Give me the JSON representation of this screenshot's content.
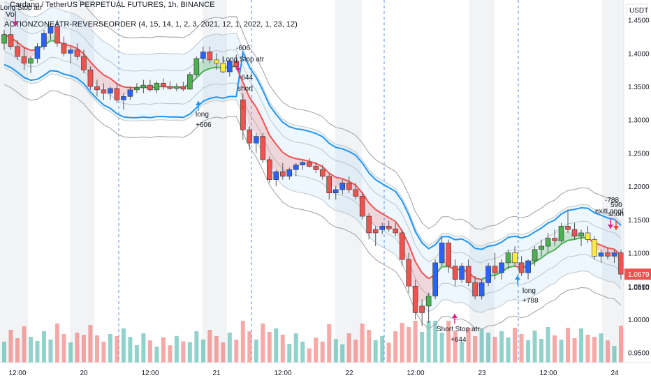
{
  "header": {
    "symbol_line": "Cardano / TetherUS PERPETUAL FUTURES, 1h, BINANCE",
    "vol_label": "Vol",
    "indicator_line": "ACTIONZONEATR-REVERSEORDER (4, 15, 14, 1, 2, 3, 2021, 12, 1, 2022, 1, 23, 12)"
  },
  "axis": {
    "currency": "USDT",
    "y_ticks": [
      "1.4500",
      "1.4000",
      "1.3500",
      "1.3000",
      "1.2500",
      "1.2000",
      "1.1500",
      "1.1000",
      "1.0500",
      "1.0000",
      "0.9500"
    ],
    "current_price": "1.0679",
    "secondary_price": "1.0610",
    "x_ticks": [
      "12:00",
      "20",
      "12:00",
      "21",
      "12:00",
      "22",
      "12:00",
      "23",
      "12:00",
      "24"
    ]
  },
  "annotations": [
    {
      "text": "Long Stop atr"
    },
    {
      "text": "-606"
    },
    {
      "text": "Long Stop atr"
    },
    {
      "text": "-644"
    },
    {
      "text": "short"
    },
    {
      "text": "long"
    },
    {
      "text": "+606"
    },
    {
      "text": "Short Stop atr"
    },
    {
      "text": "+644"
    },
    {
      "text": "long"
    },
    {
      "text": "+788"
    },
    {
      "text": "-788"
    },
    {
      "text": "exitLong(15"
    },
    {
      "text": "590"
    },
    {
      "text": "short"
    }
  ],
  "colors": {
    "bull": "#26a69a",
    "bear": "#ef5350",
    "blue_candle": "#2962ff",
    "green_candle": "#4caf50",
    "yellow_candle": "#ffeb3b",
    "ema_red": "#ef5350",
    "ema_green": "#4caf50",
    "atr_line": "#2196f3",
    "price_badge": "#ef5350",
    "secondary_badge": "#ffffff"
  },
  "chart_data": {
    "type": "candlestick",
    "y_range": [
      0.935,
      1.48
    ],
    "x_ticks": [
      "12:00",
      "20",
      "12:00",
      "21",
      "12:00",
      "22",
      "12:00",
      "23",
      "12:00",
      "24"
    ],
    "candles": [
      {
        "o": 1.415,
        "h": 1.435,
        "l": 1.405,
        "c": 1.428,
        "color": "green"
      },
      {
        "o": 1.428,
        "h": 1.44,
        "l": 1.405,
        "c": 1.41,
        "color": "red"
      },
      {
        "o": 1.41,
        "h": 1.42,
        "l": 1.39,
        "c": 1.395,
        "color": "red"
      },
      {
        "o": 1.395,
        "h": 1.41,
        "l": 1.375,
        "c": 1.385,
        "color": "red"
      },
      {
        "o": 1.385,
        "h": 1.395,
        "l": 1.37,
        "c": 1.392,
        "color": "green"
      },
      {
        "o": 1.392,
        "h": 1.415,
        "l": 1.385,
        "c": 1.41,
        "color": "blue"
      },
      {
        "o": 1.41,
        "h": 1.435,
        "l": 1.405,
        "c": 1.43,
        "color": "blue"
      },
      {
        "o": 1.43,
        "h": 1.445,
        "l": 1.42,
        "c": 1.44,
        "color": "blue"
      },
      {
        "o": 1.44,
        "h": 1.45,
        "l": 1.41,
        "c": 1.415,
        "color": "red"
      },
      {
        "o": 1.415,
        "h": 1.425,
        "l": 1.395,
        "c": 1.4,
        "color": "red"
      },
      {
        "o": 1.4,
        "h": 1.41,
        "l": 1.385,
        "c": 1.405,
        "color": "blue"
      },
      {
        "o": 1.405,
        "h": 1.415,
        "l": 1.39,
        "c": 1.395,
        "color": "red"
      },
      {
        "o": 1.395,
        "h": 1.405,
        "l": 1.37,
        "c": 1.375,
        "color": "red"
      },
      {
        "o": 1.375,
        "h": 1.38,
        "l": 1.345,
        "c": 1.35,
        "color": "red"
      },
      {
        "o": 1.35,
        "h": 1.36,
        "l": 1.335,
        "c": 1.345,
        "color": "red"
      },
      {
        "o": 1.345,
        "h": 1.355,
        "l": 1.33,
        "c": 1.34,
        "color": "red"
      },
      {
        "o": 1.34,
        "h": 1.35,
        "l": 1.33,
        "c": 1.347,
        "color": "blue"
      },
      {
        "o": 1.347,
        "h": 1.355,
        "l": 1.325,
        "c": 1.33,
        "color": "red"
      },
      {
        "o": 1.33,
        "h": 1.34,
        "l": 1.315,
        "c": 1.335,
        "color": "blue"
      },
      {
        "o": 1.335,
        "h": 1.35,
        "l": 1.33,
        "c": 1.345,
        "color": "blue"
      },
      {
        "o": 1.345,
        "h": 1.355,
        "l": 1.34,
        "c": 1.348,
        "color": "green"
      },
      {
        "o": 1.348,
        "h": 1.36,
        "l": 1.34,
        "c": 1.352,
        "color": "green"
      },
      {
        "o": 1.352,
        "h": 1.36,
        "l": 1.342,
        "c": 1.345,
        "color": "red"
      },
      {
        "o": 1.345,
        "h": 1.358,
        "l": 1.34,
        "c": 1.355,
        "color": "green"
      },
      {
        "o": 1.355,
        "h": 1.362,
        "l": 1.345,
        "c": 1.35,
        "color": "red"
      },
      {
        "o": 1.35,
        "h": 1.358,
        "l": 1.345,
        "c": 1.347,
        "color": "red"
      },
      {
        "o": 1.347,
        "h": 1.355,
        "l": 1.343,
        "c": 1.35,
        "color": "green"
      },
      {
        "o": 1.35,
        "h": 1.357,
        "l": 1.343,
        "c": 1.346,
        "color": "red"
      },
      {
        "o": 1.346,
        "h": 1.372,
        "l": 1.345,
        "c": 1.368,
        "color": "green"
      },
      {
        "o": 1.368,
        "h": 1.395,
        "l": 1.365,
        "c": 1.392,
        "color": "green"
      },
      {
        "o": 1.392,
        "h": 1.41,
        "l": 1.385,
        "c": 1.402,
        "color": "blue"
      },
      {
        "o": 1.402,
        "h": 1.41,
        "l": 1.385,
        "c": 1.39,
        "color": "red"
      },
      {
        "o": 1.39,
        "h": 1.4,
        "l": 1.375,
        "c": 1.385,
        "color": "yellow"
      },
      {
        "o": 1.385,
        "h": 1.395,
        "l": 1.37,
        "c": 1.372,
        "color": "yellow"
      },
      {
        "o": 1.372,
        "h": 1.39,
        "l": 1.365,
        "c": 1.388,
        "color": "blue"
      },
      {
        "o": 1.388,
        "h": 1.398,
        "l": 1.375,
        "c": 1.38,
        "color": "red"
      },
      {
        "o": 1.33,
        "h": 1.34,
        "l": 1.27,
        "c": 1.285,
        "color": "red"
      },
      {
        "o": 1.285,
        "h": 1.29,
        "l": 1.255,
        "c": 1.265,
        "color": "red"
      },
      {
        "o": 1.265,
        "h": 1.28,
        "l": 1.25,
        "c": 1.275,
        "color": "blue"
      },
      {
        "o": 1.275,
        "h": 1.28,
        "l": 1.235,
        "c": 1.24,
        "color": "red"
      },
      {
        "o": 1.24,
        "h": 1.245,
        "l": 1.205,
        "c": 1.21,
        "color": "red"
      },
      {
        "o": 1.21,
        "h": 1.225,
        "l": 1.2,
        "c": 1.222,
        "color": "blue"
      },
      {
        "o": 1.222,
        "h": 1.235,
        "l": 1.21,
        "c": 1.215,
        "color": "red"
      },
      {
        "o": 1.215,
        "h": 1.228,
        "l": 1.21,
        "c": 1.225,
        "color": "blue"
      },
      {
        "o": 1.225,
        "h": 1.235,
        "l": 1.215,
        "c": 1.232,
        "color": "blue"
      },
      {
        "o": 1.232,
        "h": 1.24,
        "l": 1.225,
        "c": 1.236,
        "color": "blue"
      },
      {
        "o": 1.236,
        "h": 1.242,
        "l": 1.228,
        "c": 1.23,
        "color": "red"
      },
      {
        "o": 1.23,
        "h": 1.236,
        "l": 1.22,
        "c": 1.225,
        "color": "red"
      },
      {
        "o": 1.225,
        "h": 1.232,
        "l": 1.21,
        "c": 1.215,
        "color": "red"
      },
      {
        "o": 1.215,
        "h": 1.22,
        "l": 1.18,
        "c": 1.19,
        "color": "red"
      },
      {
        "o": 1.19,
        "h": 1.2,
        "l": 1.18,
        "c": 1.195,
        "color": "blue"
      },
      {
        "o": 1.195,
        "h": 1.21,
        "l": 1.188,
        "c": 1.205,
        "color": "blue"
      },
      {
        "o": 1.205,
        "h": 1.215,
        "l": 1.19,
        "c": 1.195,
        "color": "red"
      },
      {
        "o": 1.195,
        "h": 1.205,
        "l": 1.18,
        "c": 1.185,
        "color": "red"
      },
      {
        "o": 1.185,
        "h": 1.19,
        "l": 1.15,
        "c": 1.155,
        "color": "red"
      },
      {
        "o": 1.155,
        "h": 1.16,
        "l": 1.12,
        "c": 1.13,
        "color": "red"
      },
      {
        "o": 1.13,
        "h": 1.14,
        "l": 1.11,
        "c": 1.135,
        "color": "red"
      },
      {
        "o": 1.135,
        "h": 1.145,
        "l": 1.128,
        "c": 1.14,
        "color": "blue"
      },
      {
        "o": 1.14,
        "h": 1.148,
        "l": 1.132,
        "c": 1.136,
        "color": "red"
      },
      {
        "o": 1.136,
        "h": 1.145,
        "l": 1.125,
        "c": 1.13,
        "color": "red"
      },
      {
        "o": 1.13,
        "h": 1.135,
        "l": 1.08,
        "c": 1.09,
        "color": "red"
      },
      {
        "o": 1.09,
        "h": 1.1,
        "l": 1.04,
        "c": 1.05,
        "color": "red"
      },
      {
        "o": 1.05,
        "h": 1.06,
        "l": 1.0,
        "c": 1.01,
        "color": "red"
      },
      {
        "o": 1.01,
        "h": 1.03,
        "l": 0.99,
        "c": 1.02,
        "color": "red"
      },
      {
        "o": 1.02,
        "h": 1.04,
        "l": 0.995,
        "c": 1.035,
        "color": "green"
      },
      {
        "o": 1.035,
        "h": 1.09,
        "l": 1.03,
        "c": 1.085,
        "color": "blue"
      },
      {
        "o": 1.085,
        "h": 1.125,
        "l": 1.08,
        "c": 1.115,
        "color": "blue"
      },
      {
        "o": 1.115,
        "h": 1.12,
        "l": 1.07,
        "c": 1.08,
        "color": "red"
      },
      {
        "o": 1.08,
        "h": 1.09,
        "l": 1.05,
        "c": 1.06,
        "color": "red"
      },
      {
        "o": 1.06,
        "h": 1.085,
        "l": 1.055,
        "c": 1.08,
        "color": "blue"
      },
      {
        "o": 1.08,
        "h": 1.09,
        "l": 1.05,
        "c": 1.055,
        "color": "red"
      },
      {
        "o": 1.055,
        "h": 1.065,
        "l": 1.03,
        "c": 1.035,
        "color": "red"
      },
      {
        "o": 1.035,
        "h": 1.06,
        "l": 1.03,
        "c": 1.055,
        "color": "blue"
      },
      {
        "o": 1.055,
        "h": 1.085,
        "l": 1.05,
        "c": 1.08,
        "color": "blue"
      },
      {
        "o": 1.08,
        "h": 1.1,
        "l": 1.06,
        "c": 1.07,
        "color": "red"
      },
      {
        "o": 1.07,
        "h": 1.09,
        "l": 1.06,
        "c": 1.085,
        "color": "blue"
      },
      {
        "o": 1.085,
        "h": 1.105,
        "l": 1.075,
        "c": 1.1,
        "color": "green"
      },
      {
        "o": 1.1,
        "h": 1.11,
        "l": 1.08,
        "c": 1.085,
        "color": "yellow"
      },
      {
        "o": 1.085,
        "h": 1.095,
        "l": 1.065,
        "c": 1.07,
        "color": "red"
      },
      {
        "o": 1.07,
        "h": 1.09,
        "l": 1.06,
        "c": 1.088,
        "color": "blue"
      },
      {
        "o": 1.088,
        "h": 1.11,
        "l": 1.08,
        "c": 1.105,
        "color": "green"
      },
      {
        "o": 1.105,
        "h": 1.12,
        "l": 1.095,
        "c": 1.11,
        "color": "green"
      },
      {
        "o": 1.11,
        "h": 1.13,
        "l": 1.1,
        "c": 1.122,
        "color": "green"
      },
      {
        "o": 1.122,
        "h": 1.135,
        "l": 1.11,
        "c": 1.118,
        "color": "red"
      },
      {
        "o": 1.118,
        "h": 1.145,
        "l": 1.115,
        "c": 1.14,
        "color": "green"
      },
      {
        "o": 1.14,
        "h": 1.165,
        "l": 1.13,
        "c": 1.135,
        "color": "red"
      },
      {
        "o": 1.135,
        "h": 1.145,
        "l": 1.12,
        "c": 1.125,
        "color": "red"
      },
      {
        "o": 1.125,
        "h": 1.135,
        "l": 1.11,
        "c": 1.13,
        "color": "green"
      },
      {
        "o": 1.13,
        "h": 1.14,
        "l": 1.115,
        "c": 1.12,
        "color": "yellow"
      },
      {
        "o": 1.12,
        "h": 1.125,
        "l": 1.09,
        "c": 1.095,
        "color": "yellow"
      },
      {
        "o": 1.095,
        "h": 1.105,
        "l": 1.085,
        "c": 1.1,
        "color": "blue"
      },
      {
        "o": 1.1,
        "h": 1.108,
        "l": 1.09,
        "c": 1.095,
        "color": "red"
      },
      {
        "o": 1.095,
        "h": 1.105,
        "l": 1.085,
        "c": 1.1,
        "color": "blue"
      },
      {
        "o": 1.1,
        "h": 1.105,
        "l": 1.06,
        "c": 1.068,
        "color": "red"
      }
    ]
  }
}
